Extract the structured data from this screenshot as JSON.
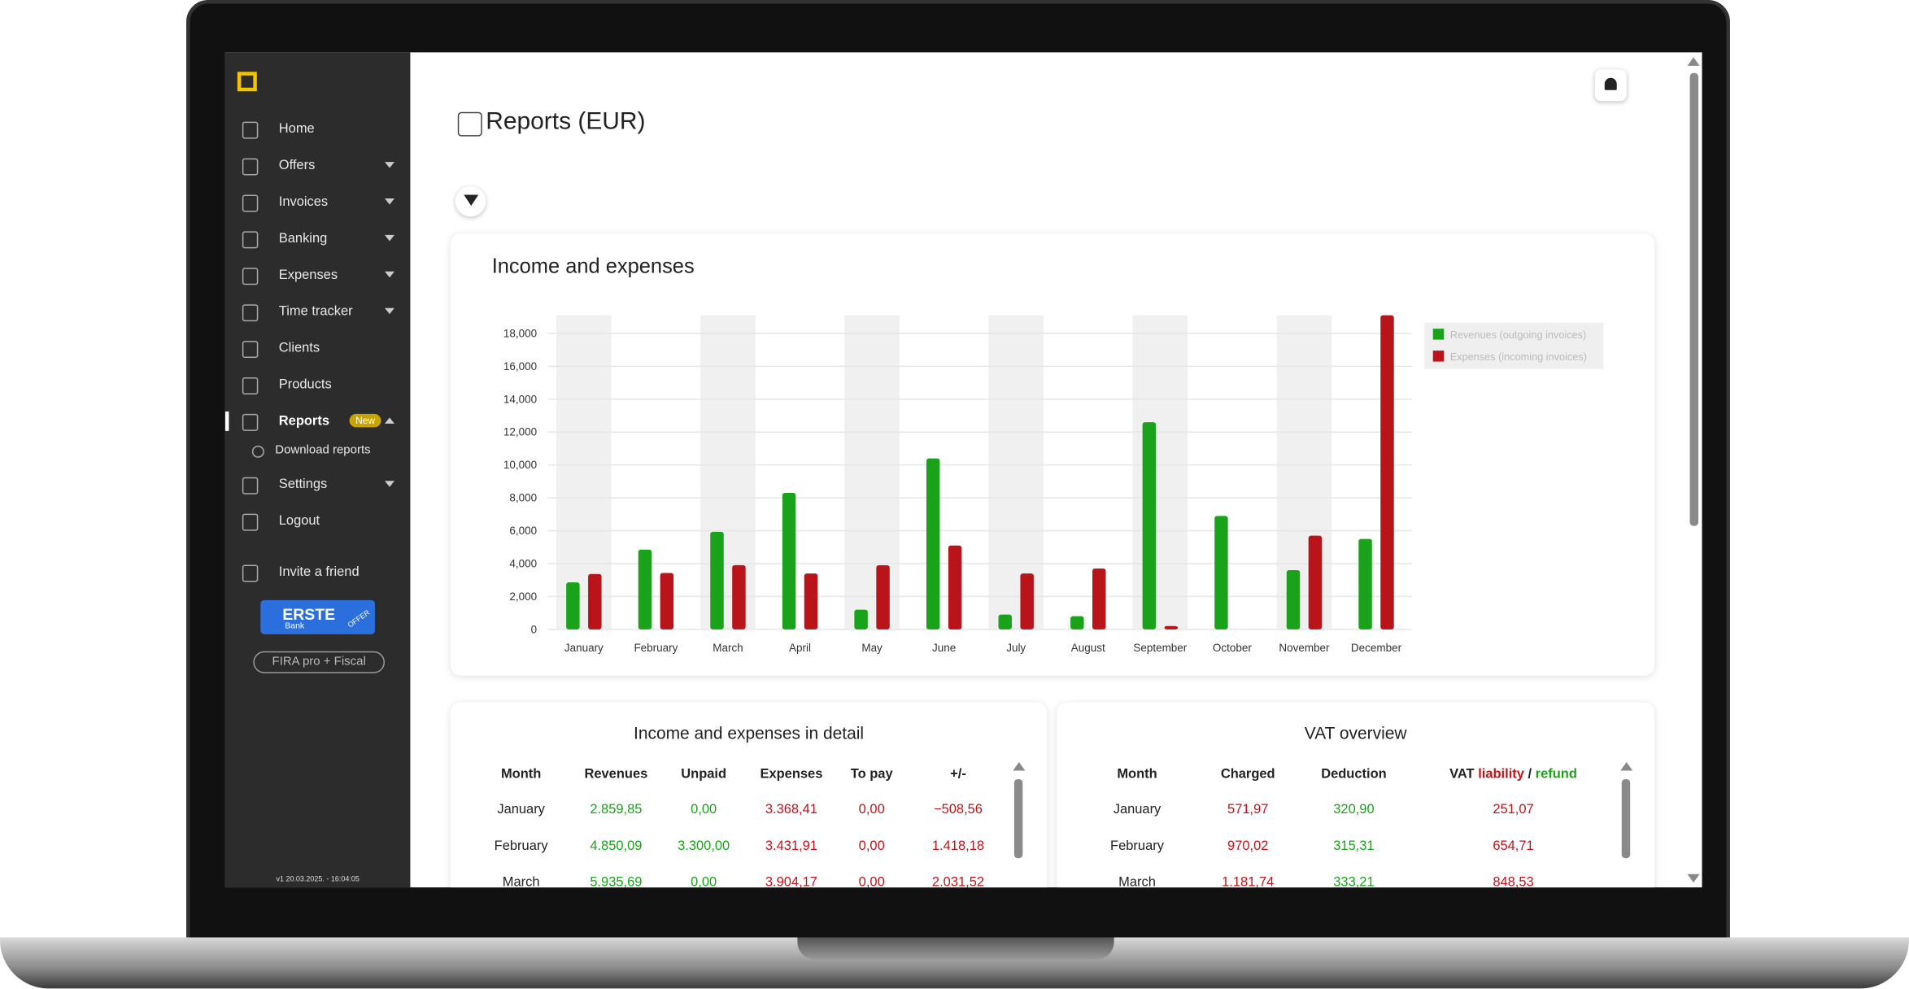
{
  "sidebar": {
    "items": [
      "Home",
      "Offers",
      "Invoices",
      "Banking",
      "Expenses",
      "Time tracker",
      "Clients",
      "Products",
      "Reports",
      "Settings",
      "Logout"
    ],
    "badge": "New",
    "subitem": "Download reports",
    "invite": "Invite a friend",
    "bank_logo": "ERSTE",
    "bank_sub": "Bank",
    "bank_tag": "OFFER",
    "plan_button": "FIRA pro + Fiscal",
    "version": "v1 20.03.2025. - 16:04:05"
  },
  "header": {
    "title": "Reports (EUR)"
  },
  "chart_data": {
    "type": "bar",
    "title": "Income and expenses",
    "categories": [
      "January",
      "February",
      "March",
      "April",
      "May",
      "June",
      "July",
      "August",
      "September",
      "October",
      "November",
      "December"
    ],
    "series": [
      {
        "name": "Revenues (outgoing invoices)",
        "color": "#1aa31a",
        "values": [
          2859.85,
          4850.09,
          5935.69,
          8300,
          1200,
          10400,
          900,
          800,
          12600,
          6900,
          3600,
          5500
        ]
      },
      {
        "name": "Expenses (incoming invoices)",
        "color": "#b8141a",
        "values": [
          3368.41,
          3431.91,
          3904.17,
          3400,
          3900,
          5100,
          3400,
          3700,
          200,
          0,
          5700,
          19100
        ]
      }
    ],
    "ylim": [
      0,
      19100
    ],
    "yticks": [
      0,
      {
        "value": 2000,
        "label": "2,000"
      },
      {
        "value": 4000,
        "label": "4,000"
      },
      {
        "value": 6000,
        "label": "6,000"
      },
      {
        "value": 8000,
        "label": "8,000"
      },
      {
        "value": 10000,
        "label": "10,000"
      },
      {
        "value": 12000,
        "label": "12,000"
      },
      {
        "value": 14000,
        "label": "14,000"
      },
      {
        "value": 16000,
        "label": "16,000"
      },
      {
        "value": 18000,
        "label": "18,000"
      }
    ],
    "grid": true,
    "legend": "top-right"
  },
  "detail_table": {
    "title": "Income and expenses in detail",
    "columns": [
      "Month",
      "Revenues",
      "Unpaid",
      "Expenses",
      "To pay",
      "+/-"
    ],
    "rows": [
      [
        "January",
        "2.859,85",
        "0,00",
        "3.368,41",
        "0,00",
        "−508,56"
      ],
      [
        "February",
        "4.850,09",
        "3.300,00",
        "3.431,91",
        "0,00",
        "1.418,18"
      ],
      [
        "March",
        "5.935,69",
        "0,00",
        "3.904,17",
        "0,00",
        "2.031,52"
      ]
    ]
  },
  "vat_table": {
    "title": "VAT overview",
    "columns": [
      "Month",
      "Charged",
      "Deduction"
    ],
    "vat_header": [
      "VAT",
      "liability",
      "/",
      "refund"
    ],
    "rows": [
      [
        "January",
        "571,97",
        "320,90",
        "251,07"
      ],
      [
        "February",
        "970,02",
        "315,31",
        "654,71"
      ],
      [
        "March",
        "1.181,74",
        "333,21",
        "848,53"
      ]
    ]
  }
}
